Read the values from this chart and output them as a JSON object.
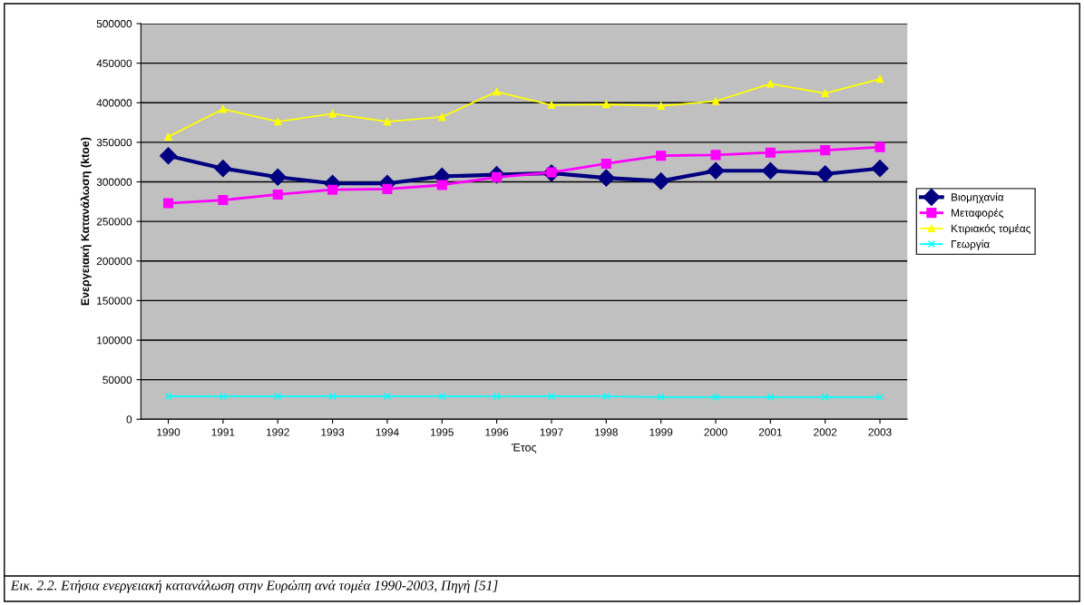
{
  "chart_data": {
    "type": "line",
    "xlabel": "Έτος",
    "ylabel": "Ενεργειακή Κατανάλωση (ktoe)",
    "categories": [
      "1990",
      "1991",
      "1992",
      "1993",
      "1994",
      "1995",
      "1996",
      "1997",
      "1998",
      "1999",
      "2000",
      "2001",
      "2002",
      "2003"
    ],
    "series": [
      {
        "name": "Βιομηχανία",
        "color": "#000080",
        "marker": "diamond",
        "values": [
          333000,
          317000,
          306000,
          298000,
          298000,
          307000,
          309000,
          311000,
          305000,
          301000,
          314000,
          314000,
          310000,
          317000
        ]
      },
      {
        "name": "Μεταφορές",
        "color": "#ff00ff",
        "marker": "square",
        "values": [
          273000,
          277000,
          284000,
          290000,
          291000,
          296000,
          306000,
          312000,
          323000,
          333000,
          334000,
          337000,
          340000,
          344000
        ]
      },
      {
        "name": "Κτιριακός τομέας",
        "color": "#ffff00",
        "marker": "triangle",
        "values": [
          357000,
          392000,
          376000,
          386000,
          376000,
          382000,
          414000,
          397000,
          398000,
          396000,
          402000,
          424000,
          412000,
          430000
        ]
      },
      {
        "name": "Γεωργία",
        "color": "#00ffff",
        "marker": "cross",
        "values": [
          29000,
          29000,
          29000,
          29000,
          29000,
          29000,
          29000,
          29000,
          29000,
          28000,
          28000,
          28000,
          28000,
          28000
        ]
      }
    ],
    "ylim": [
      0,
      500000
    ],
    "yticks": [
      0,
      50000,
      100000,
      150000,
      200000,
      250000,
      300000,
      350000,
      400000,
      450000,
      500000
    ],
    "grid": "y",
    "legend": "right",
    "annotations": [
      "Εικ. 2.2. Ετήσια ενεργειακή κατανάλωση στην Ευρώπη ανά τομέα 1990-2003, Πηγή [51]"
    ]
  }
}
